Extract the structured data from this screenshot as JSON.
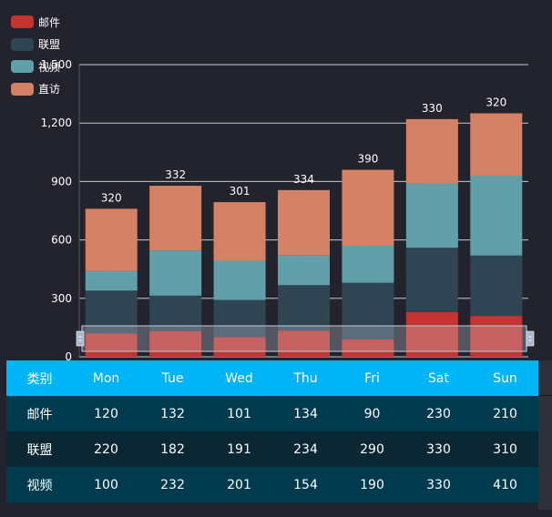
{
  "chart_data": {
    "type": "bar",
    "stacked": true,
    "categories": [
      "Mon",
      "Tue",
      "Wed",
      "Thu",
      "Fri",
      "Sat",
      "Sun"
    ],
    "series": [
      {
        "name": "邮件",
        "color": "#c23531",
        "values": [
          120,
          132,
          101,
          134,
          90,
          230,
          210
        ]
      },
      {
        "name": "联盟",
        "color": "#2f4554",
        "values": [
          220,
          182,
          191,
          234,
          290,
          330,
          310
        ]
      },
      {
        "name": "视频",
        "color": "#61a0a8",
        "values": [
          100,
          232,
          201,
          154,
          190,
          330,
          410
        ]
      },
      {
        "name": "直访",
        "color": "#d48265",
        "values": [
          320,
          332,
          301,
          334,
          390,
          330,
          320
        ]
      }
    ],
    "top_labels": [
      "320",
      "332",
      "301",
      "334",
      "390",
      "330",
      "320"
    ],
    "y_ticks": [
      "0",
      "300",
      "600",
      "900",
      "1,200",
      "1,500"
    ],
    "ylim": [
      0,
      1500
    ],
    "grid": true,
    "legend_position": "top-left",
    "datazoom_slider": true
  },
  "table": {
    "header_first": "类别",
    "header_days": [
      "Mon",
      "Tue",
      "Wed",
      "Thu",
      "Fri",
      "Sat",
      "Sun"
    ],
    "rows": [
      {
        "name": "邮件",
        "values": [
          "120",
          "132",
          "101",
          "134",
          "90",
          "230",
          "210"
        ]
      },
      {
        "name": "联盟",
        "values": [
          "220",
          "182",
          "191",
          "234",
          "290",
          "330",
          "310"
        ]
      },
      {
        "name": "视频",
        "values": [
          "100",
          "232",
          "201",
          "154",
          "190",
          "330",
          "410"
        ]
      }
    ]
  }
}
